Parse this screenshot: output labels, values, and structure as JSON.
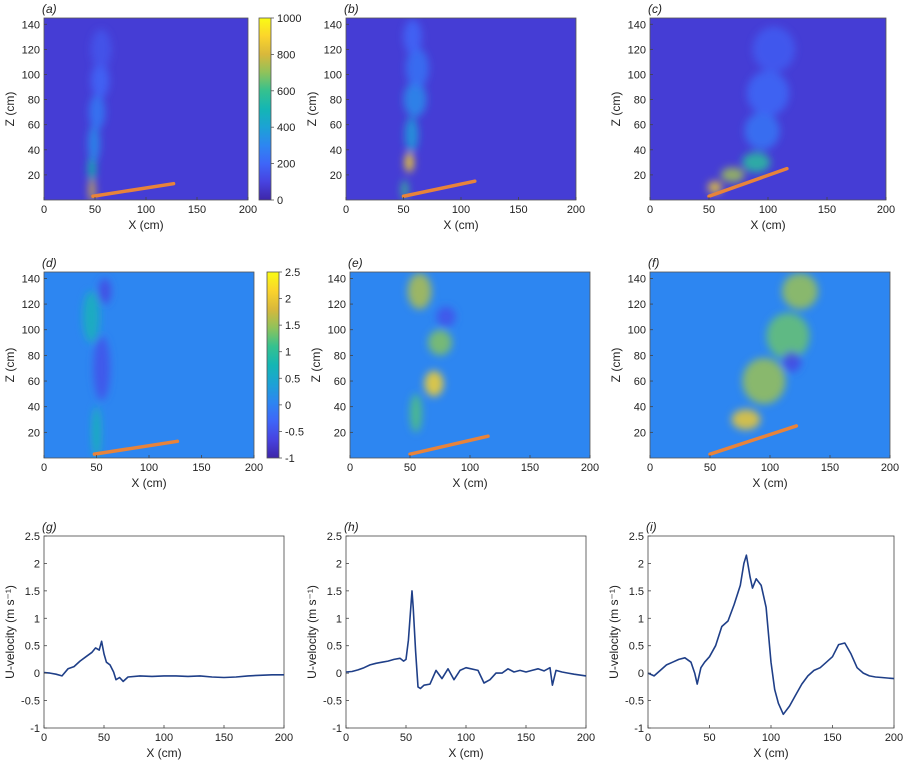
{
  "colormap": [
    "#3e26a8",
    "#4743e0",
    "#3e66f8",
    "#2d86f1",
    "#1ca2d5",
    "#14b6b4",
    "#35c18f",
    "#8fc25b",
    "#d8b83b",
    "#fbd42c",
    "#f9fb14"
  ],
  "line_color": "#1f3f88",
  "plate_color": "#e8833a",
  "chart_data": [
    {
      "id": "a",
      "label": "(a)",
      "type": "heatmap",
      "xlabel": "X (cm)",
      "ylabel": "Z (cm)",
      "xlim": [
        0,
        200
      ],
      "ylim": [
        0,
        145
      ],
      "xticks": [
        0,
        50,
        100,
        150,
        200
      ],
      "yticks": [
        20,
        40,
        60,
        80,
        100,
        120,
        140
      ],
      "colorbar": {
        "min": 0,
        "max": 1000,
        "ticks": [
          0,
          200,
          400,
          600,
          800,
          1000
        ]
      },
      "plate": [
        [
          48,
          3
        ],
        [
          127,
          13
        ]
      ],
      "features": [
        {
          "x": 47,
          "z": 8,
          "rx": 3,
          "rz": 10,
          "v": 820
        },
        {
          "x": 47,
          "z": 25,
          "rx": 4,
          "rz": 10,
          "v": 520
        },
        {
          "x": 49,
          "z": 45,
          "rx": 6,
          "rz": 15,
          "v": 320
        },
        {
          "x": 52,
          "z": 70,
          "rx": 8,
          "rz": 14,
          "v": 260
        },
        {
          "x": 55,
          "z": 95,
          "rx": 9,
          "rz": 14,
          "v": 200
        },
        {
          "x": 56,
          "z": 120,
          "rx": 10,
          "rz": 16,
          "v": 150
        }
      ]
    },
    {
      "id": "b",
      "label": "(b)",
      "type": "heatmap",
      "xlabel": "X (cm)",
      "ylabel": "Z (cm)",
      "xlim": [
        0,
        200
      ],
      "ylim": [
        0,
        145
      ],
      "xticks": [
        0,
        50,
        100,
        150,
        200
      ],
      "yticks": [
        20,
        40,
        60,
        80,
        100,
        120,
        140
      ],
      "plate": [
        [
          50,
          3
        ],
        [
          112,
          15
        ]
      ],
      "features": [
        {
          "x": 51,
          "z": 8,
          "rx": 3,
          "rz": 8,
          "v": 600
        },
        {
          "x": 55,
          "z": 30,
          "rx": 4,
          "rz": 8,
          "v": 900
        },
        {
          "x": 57,
          "z": 52,
          "rx": 6,
          "rz": 14,
          "v": 380
        },
        {
          "x": 60,
          "z": 80,
          "rx": 10,
          "rz": 14,
          "v": 320
        },
        {
          "x": 62,
          "z": 105,
          "rx": 10,
          "rz": 16,
          "v": 240
        },
        {
          "x": 58,
          "z": 130,
          "rx": 8,
          "rz": 14,
          "v": 200
        }
      ]
    },
    {
      "id": "c",
      "label": "(c)",
      "type": "heatmap",
      "xlabel": "X (cm)",
      "ylabel": "Z (cm)",
      "xlim": [
        0,
        200
      ],
      "ylim": [
        0,
        145
      ],
      "xticks": [
        0,
        50,
        100,
        150,
        200
      ],
      "yticks": [
        20,
        40,
        60,
        80,
        100,
        120,
        140
      ],
      "plate": [
        [
          50,
          3
        ],
        [
          116,
          25
        ]
      ],
      "features": [
        {
          "x": 55,
          "z": 10,
          "rx": 6,
          "rz": 5,
          "v": 860
        },
        {
          "x": 70,
          "z": 20,
          "rx": 10,
          "rz": 6,
          "v": 720
        },
        {
          "x": 90,
          "z": 30,
          "rx": 12,
          "rz": 8,
          "v": 560
        },
        {
          "x": 95,
          "z": 55,
          "rx": 15,
          "rz": 15,
          "v": 250
        },
        {
          "x": 100,
          "z": 85,
          "rx": 18,
          "rz": 18,
          "v": 210
        },
        {
          "x": 105,
          "z": 120,
          "rx": 18,
          "rz": 18,
          "v": 170
        }
      ]
    },
    {
      "id": "d",
      "label": "(d)",
      "type": "heatmap",
      "xlabel": "X (cm)",
      "ylabel": "Z (cm)",
      "xlim": [
        0,
        200
      ],
      "ylim": [
        0,
        145
      ],
      "xticks": [
        0,
        50,
        100,
        150,
        200
      ],
      "yticks": [
        20,
        40,
        60,
        80,
        100,
        120,
        140
      ],
      "colorbar": {
        "min": -1,
        "max": 2.5,
        "ticks": [
          -1,
          -0.5,
          0,
          0.5,
          1,
          1.5,
          2,
          2.5
        ]
      },
      "plate": [
        [
          48,
          3
        ],
        [
          127,
          13
        ]
      ],
      "features": [
        {
          "x": 50,
          "z": 20,
          "rx": 4,
          "rz": 20,
          "v": 0.8
        },
        {
          "x": 55,
          "z": 70,
          "rx": 8,
          "rz": 25,
          "v": -0.5
        },
        {
          "x": 45,
          "z": 110,
          "rx": 8,
          "rz": 20,
          "v": 0.7
        },
        {
          "x": 58,
          "z": 130,
          "rx": 6,
          "rz": 10,
          "v": -0.6
        }
      ]
    },
    {
      "id": "e",
      "label": "(e)",
      "type": "heatmap",
      "xlabel": "X (cm)",
      "ylabel": "Z (cm)",
      "xlim": [
        0,
        200
      ],
      "ylim": [
        0,
        145
      ],
      "xticks": [
        0,
        50,
        100,
        150,
        200
      ],
      "yticks": [
        20,
        40,
        60,
        80,
        100,
        120,
        140
      ],
      "plate": [
        [
          50,
          3
        ],
        [
          115,
          17
        ]
      ],
      "features": [
        {
          "x": 70,
          "z": 58,
          "rx": 8,
          "rz": 10,
          "v": 2.1
        },
        {
          "x": 75,
          "z": 90,
          "rx": 10,
          "rz": 10,
          "v": 1.4
        },
        {
          "x": 55,
          "z": 35,
          "rx": 5,
          "rz": 15,
          "v": 1.2
        },
        {
          "x": 58,
          "z": 130,
          "rx": 10,
          "rz": 14,
          "v": 1.6
        },
        {
          "x": 80,
          "z": 110,
          "rx": 8,
          "rz": 8,
          "v": -0.5
        }
      ]
    },
    {
      "id": "f",
      "label": "(f)",
      "type": "heatmap",
      "xlabel": "X (cm)",
      "ylabel": "Z (cm)",
      "xlim": [
        0,
        200
      ],
      "ylim": [
        0,
        145
      ],
      "xticks": [
        0,
        50,
        100,
        150,
        200
      ],
      "yticks": [
        20,
        40,
        60,
        80,
        100,
        120,
        140
      ],
      "plate": [
        [
          50,
          3
        ],
        [
          122,
          25
        ]
      ],
      "features": [
        {
          "x": 80,
          "z": 30,
          "rx": 12,
          "rz": 8,
          "v": 2.0
        },
        {
          "x": 95,
          "z": 60,
          "rx": 18,
          "rz": 18,
          "v": 1.5
        },
        {
          "x": 115,
          "z": 95,
          "rx": 18,
          "rz": 18,
          "v": 1.3
        },
        {
          "x": 125,
          "z": 130,
          "rx": 15,
          "rz": 14,
          "v": 1.5
        },
        {
          "x": 118,
          "z": 75,
          "rx": 8,
          "rz": 8,
          "v": -0.6
        }
      ]
    },
    {
      "id": "g",
      "label": "(g)",
      "type": "line",
      "xlabel": "X (cm)",
      "ylabel": "U-velocity (m s⁻¹)",
      "xlim": [
        0,
        200
      ],
      "ylim": [
        -1,
        2.5
      ],
      "xticks": [
        0,
        50,
        100,
        150,
        200
      ],
      "yticks": [
        -1,
        -0.5,
        0,
        0.5,
        1,
        1.5,
        2,
        2.5
      ],
      "x": [
        0,
        5,
        10,
        15,
        20,
        25,
        30,
        35,
        40,
        43,
        46,
        48,
        50,
        52,
        55,
        58,
        60,
        63,
        66,
        70,
        80,
        90,
        100,
        110,
        120,
        130,
        140,
        150,
        160,
        170,
        180,
        190,
        200
      ],
      "y": [
        0.01,
        0.0,
        -0.02,
        -0.05,
        0.08,
        0.12,
        0.22,
        0.3,
        0.38,
        0.46,
        0.42,
        0.58,
        0.35,
        0.2,
        0.15,
        0.02,
        -0.12,
        -0.08,
        -0.15,
        -0.07,
        -0.05,
        -0.06,
        -0.05,
        -0.05,
        -0.06,
        -0.05,
        -0.07,
        -0.08,
        -0.07,
        -0.05,
        -0.04,
        -0.03,
        -0.03
      ]
    },
    {
      "id": "h",
      "label": "(h)",
      "type": "line",
      "xlabel": "X (cm)",
      "ylabel": "U-velocity (m s⁻¹)",
      "xlim": [
        0,
        200
      ],
      "ylim": [
        -1,
        2.5
      ],
      "xticks": [
        0,
        50,
        100,
        150,
        200
      ],
      "yticks": [
        -1,
        -0.5,
        0,
        0.5,
        1,
        1.5,
        2,
        2.5
      ],
      "x": [
        0,
        5,
        10,
        15,
        20,
        25,
        30,
        35,
        40,
        45,
        48,
        50,
        52,
        54,
        55,
        56,
        58,
        60,
        62,
        65,
        70,
        75,
        80,
        85,
        90,
        95,
        100,
        110,
        115,
        120,
        125,
        130,
        135,
        140,
        145,
        150,
        155,
        160,
        165,
        170,
        172,
        175,
        180,
        185,
        190,
        200
      ],
      "y": [
        0.02,
        0.03,
        0.06,
        0.1,
        0.15,
        0.18,
        0.2,
        0.22,
        0.25,
        0.27,
        0.22,
        0.25,
        0.6,
        1.2,
        1.5,
        1.2,
        0.4,
        -0.25,
        -0.28,
        -0.22,
        -0.2,
        0.05,
        -0.1,
        0.08,
        -0.12,
        0.05,
        0.1,
        0.05,
        -0.18,
        -0.12,
        0.0,
        0.0,
        0.08,
        0.02,
        0.05,
        0.02,
        0.05,
        0.08,
        0.04,
        0.1,
        -0.22,
        0.05,
        0.02,
        0.0,
        -0.02,
        -0.05
      ]
    },
    {
      "id": "i",
      "label": "(i)",
      "type": "line",
      "xlabel": "X (cm)",
      "ylabel": "U-velocity (m s⁻¹)",
      "xlim": [
        0,
        200
      ],
      "ylim": [
        -1,
        2.5
      ],
      "xticks": [
        0,
        50,
        100,
        150,
        200
      ],
      "yticks": [
        -1,
        -0.5,
        0,
        0.5,
        1,
        1.5,
        2,
        2.5
      ],
      "x": [
        0,
        5,
        10,
        15,
        20,
        25,
        30,
        35,
        38,
        40,
        43,
        46,
        50,
        55,
        60,
        65,
        70,
        75,
        78,
        80,
        83,
        85,
        88,
        92,
        96,
        100,
        103,
        106,
        110,
        115,
        120,
        125,
        130,
        135,
        140,
        145,
        150,
        155,
        160,
        165,
        170,
        175,
        180,
        185,
        190,
        200
      ],
      "y": [
        0.0,
        -0.05,
        0.05,
        0.15,
        0.2,
        0.25,
        0.28,
        0.2,
        0.0,
        -0.2,
        0.1,
        0.2,
        0.3,
        0.5,
        0.85,
        0.95,
        1.25,
        1.6,
        2.0,
        2.15,
        1.75,
        1.55,
        1.72,
        1.6,
        1.2,
        0.2,
        -0.3,
        -0.55,
        -0.75,
        -0.6,
        -0.4,
        -0.2,
        -0.05,
        0.05,
        0.1,
        0.2,
        0.3,
        0.52,
        0.55,
        0.35,
        0.1,
        0.0,
        -0.05,
        -0.07,
        -0.08,
        -0.1
      ]
    }
  ]
}
